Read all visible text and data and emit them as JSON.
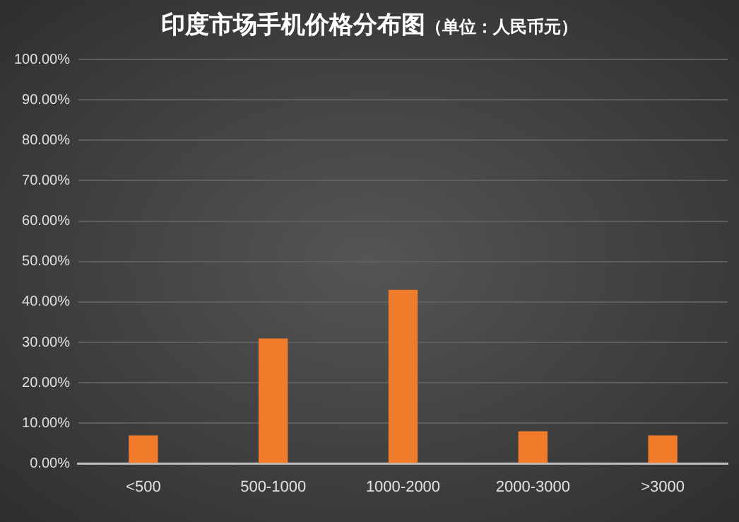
{
  "chart_data": {
    "type": "bar",
    "title": "印度市场手机价格分布图",
    "subtitle": "（单位：人民币元）",
    "categories": [
      "<500",
      "500-1000",
      "1000-2000",
      "2000-3000",
      ">3000"
    ],
    "values": [
      7,
      31,
      43,
      8,
      7
    ],
    "color": "#ef7b2b",
    "ylim": [
      0,
      100
    ],
    "yticks": [
      {
        "value": 0,
        "label": "0.00%"
      },
      {
        "value": 10,
        "label": "10.00%"
      },
      {
        "value": 20,
        "label": "20.00%"
      },
      {
        "value": 30,
        "label": "30.00%"
      },
      {
        "value": 40,
        "label": "40.00%"
      },
      {
        "value": 50,
        "label": "50.00%"
      },
      {
        "value": 60,
        "label": "60.00%"
      },
      {
        "value": 70,
        "label": "70.00%"
      },
      {
        "value": 80,
        "label": "80.00%"
      },
      {
        "value": 90,
        "label": "90.00%"
      },
      {
        "value": 100,
        "label": "100.00%"
      }
    ],
    "grid": "y",
    "legend": false
  }
}
